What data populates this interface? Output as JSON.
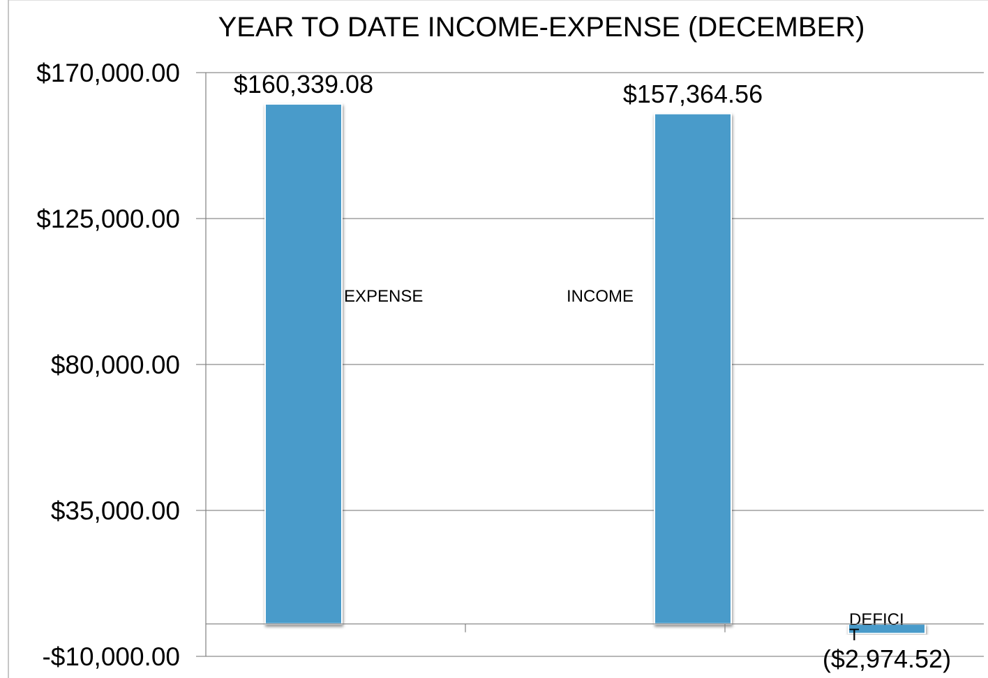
{
  "chart_data": {
    "type": "bar",
    "title": "YEAR TO DATE INCOME-EXPENSE (DECEMBER)",
    "xlabel": "",
    "ylabel": "",
    "categories": [
      "EXPENSE",
      "INCOME",
      "DEFICIT"
    ],
    "category_labels_shown": [
      "EXPENSE",
      "INCOME",
      "DEFICI\nT"
    ],
    "values": [
      160339.08,
      157364.56,
      -2974.52
    ],
    "value_labels": [
      "$160,339.08",
      "$157,364.56",
      "($2,974.52)"
    ],
    "ylim": [
      -10000,
      170000
    ],
    "yticks": [
      -10000,
      35000,
      80000,
      125000,
      170000
    ],
    "ytick_labels": [
      "-$10,000.00",
      "$35,000.00",
      "$80,000.00",
      "$125,000.00",
      "$170,000.00"
    ],
    "grid": true,
    "legend": "none",
    "bar_color": "#4a9bca"
  }
}
